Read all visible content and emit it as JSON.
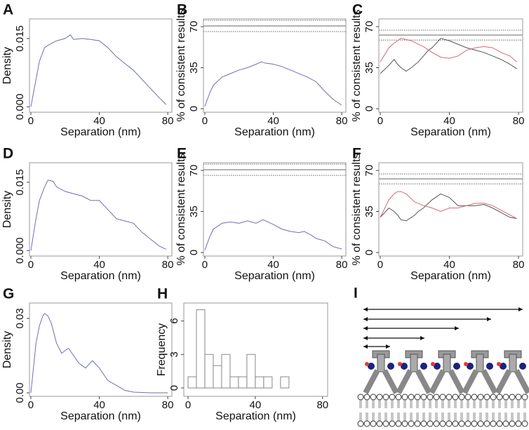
{
  "chart_data": [
    {
      "panel": "A",
      "type": "line",
      "y_label": "Density",
      "x_label": "Separation (nm)",
      "x": [
        0,
        3,
        5,
        8,
        10,
        15,
        20,
        23,
        25,
        30,
        35,
        40,
        45,
        50,
        55,
        60,
        65,
        70,
        75,
        79
      ],
      "series": [
        {
          "color": "#6e6eb8",
          "values": [
            0,
            0.006,
            0.01,
            0.013,
            0.0135,
            0.0145,
            0.015,
            0.0158,
            0.0148,
            0.015,
            0.0148,
            0.0145,
            0.013,
            0.011,
            0.0095,
            0.008,
            0.006,
            0.004,
            0.002,
            0.0005
          ]
        }
      ],
      "xlim": [
        -0.8,
        82.4
      ],
      "ylim": [
        -0.0012,
        0.0193
      ],
      "xticks": [
        0,
        40,
        80
      ],
      "yticks": [
        {
          "value": 0,
          "label": "0.000"
        },
        0.015
      ]
    },
    {
      "panel": "B",
      "type": "line",
      "y_label": "% of consistent results",
      "x_label": "Separation (nm)",
      "x": [
        0,
        3,
        5,
        10,
        15,
        20,
        25,
        30,
        33,
        35,
        40,
        45,
        50,
        55,
        60,
        65,
        70,
        75,
        80
      ],
      "series": [
        {
          "color": "#6e6eb8",
          "values": [
            2,
            14,
            20,
            27,
            30,
            33,
            35,
            38,
            40,
            39,
            38,
            36,
            33,
            30,
            27,
            23,
            15,
            8,
            3
          ]
        }
      ],
      "reference_lines": [
        {
          "value": 75.4,
          "style": "dotted"
        },
        {
          "value": 70.6,
          "style": "solid"
        },
        {
          "value": 65.8,
          "style": "dotted"
        }
      ],
      "xlim": [
        -0.8,
        82.4
      ],
      "ylim": [
        -3,
        76.6
      ],
      "xticks": [
        0,
        40,
        80
      ],
      "yticks": [
        0,
        35,
        70
      ]
    },
    {
      "panel": "C",
      "type": "line",
      "y_label": "% of consistent results",
      "x_label": "Separation (nm)",
      "x": [
        0,
        5,
        8,
        10,
        12,
        15,
        18,
        22,
        25,
        28,
        30,
        35,
        40,
        45,
        50,
        55,
        60,
        65,
        70,
        75,
        79
      ],
      "series": [
        {
          "color": "#555555",
          "values": [
            30,
            37,
            42,
            38,
            35,
            32,
            35,
            40,
            45,
            50,
            52,
            60,
            58,
            55,
            52,
            50,
            48,
            45,
            42,
            38,
            34
          ]
        },
        {
          "color": "#d4687a",
          "values": [
            40,
            52,
            56,
            58,
            60,
            59,
            58,
            55,
            53,
            50,
            48,
            44,
            43,
            45,
            50,
            52,
            53,
            52,
            48,
            45,
            40
          ]
        }
      ],
      "reference_lines": [
        {
          "value": 67,
          "style": "dotted"
        },
        {
          "value": 62.8,
          "style": "solid"
        },
        {
          "value": 58.6,
          "style": "dotted"
        }
      ],
      "xlim": [
        -0.8,
        82.4
      ],
      "ylim": [
        -3,
        76.6
      ],
      "xticks": [
        0,
        40,
        80
      ],
      "yticks": [
        0,
        35,
        70
      ]
    },
    {
      "panel": "D",
      "type": "line",
      "y_label": "Density",
      "x_label": "Separation (nm)",
      "x": [
        0,
        3,
        5,
        8,
        10,
        13,
        15,
        20,
        25,
        30,
        35,
        40,
        45,
        50,
        55,
        60,
        65,
        70,
        75,
        79
      ],
      "series": [
        {
          "color": "#6e6eb8",
          "values": [
            0,
            0.007,
            0.011,
            0.014,
            0.0155,
            0.0152,
            0.014,
            0.013,
            0.0125,
            0.012,
            0.011,
            0.011,
            0.009,
            0.007,
            0.0065,
            0.006,
            0.004,
            0.0025,
            0.001,
            0.0003
          ]
        }
      ],
      "xlim": [
        -0.8,
        82.4
      ],
      "ylim": [
        -0.0012,
        0.0193
      ],
      "xticks": [
        0,
        40,
        80
      ],
      "yticks": [
        {
          "value": 0,
          "label": "0.000"
        },
        0.015
      ]
    },
    {
      "panel": "E",
      "type": "line",
      "y_label": "% of consistent results",
      "x_label": "Separation (nm)",
      "x": [
        0,
        3,
        5,
        10,
        15,
        20,
        25,
        30,
        34,
        40,
        45,
        50,
        55,
        58,
        62,
        65,
        70,
        75,
        80
      ],
      "series": [
        {
          "color": "#6e6eb8",
          "values": [
            2,
            14,
            20,
            25,
            26,
            25,
            27,
            25,
            28,
            24,
            20,
            18,
            17,
            18,
            15,
            12,
            10,
            5,
            3
          ]
        }
      ],
      "reference_lines": [
        {
          "value": 75.4,
          "style": "dotted"
        },
        {
          "value": 70.6,
          "style": "solid"
        },
        {
          "value": 65.8,
          "style": "dotted"
        }
      ],
      "xlim": [
        -0.8,
        82.4
      ],
      "ylim": [
        -3,
        76.6
      ],
      "xticks": [
        0,
        40,
        80
      ],
      "yticks": [
        0,
        35,
        70
      ]
    },
    {
      "panel": "F",
      "type": "line",
      "y_label": "% of consistent results",
      "x_label": "Separation (nm)",
      "x": [
        0,
        5,
        8,
        10,
        12,
        15,
        20,
        22,
        25,
        30,
        35,
        40,
        45,
        50,
        55,
        60,
        65,
        70,
        75,
        79
      ],
      "series": [
        {
          "color": "#555555",
          "values": [
            30,
            38,
            35,
            32,
            28,
            27,
            32,
            35,
            38,
            45,
            50,
            47,
            40,
            40,
            40,
            41,
            38,
            34,
            30,
            29
          ]
        },
        {
          "color": "#d4687a",
          "values": [
            30,
            45,
            50,
            52,
            52,
            50,
            43,
            42,
            40,
            38,
            35,
            38,
            38,
            40,
            42,
            42,
            40,
            36,
            32,
            29
          ]
        }
      ],
      "reference_lines": [
        {
          "value": 67,
          "style": "dotted"
        },
        {
          "value": 62.8,
          "style": "solid"
        },
        {
          "value": 58.6,
          "style": "dotted"
        }
      ],
      "xlim": [
        -0.8,
        82.4
      ],
      "ylim": [
        -3,
        76.6
      ],
      "xticks": [
        0,
        40,
        80
      ],
      "yticks": [
        0,
        35,
        70
      ]
    },
    {
      "panel": "G",
      "type": "line",
      "y_label": "Density",
      "x_label": "Separation (nm)",
      "x": [
        0,
        3,
        5,
        7,
        8,
        10,
        12,
        15,
        18,
        22,
        25,
        28,
        32,
        36,
        40,
        45,
        50,
        55,
        60,
        70,
        80
      ],
      "series": [
        {
          "color": "#6e6eb8",
          "values": [
            0,
            0.02,
            0.027,
            0.031,
            0.032,
            0.031,
            0.028,
            0.02,
            0.016,
            0.018,
            0.015,
            0.012,
            0.01,
            0.013,
            0.01,
            0.005,
            0.003,
            0.001,
            0.0003,
            0,
            0
          ]
        }
      ],
      "xlim": [
        -0.8,
        82.4
      ],
      "ylim": [
        -0.0014,
        0.0362
      ],
      "xticks": [
        0,
        40,
        80
      ],
      "yticks": [
        {
          "value": 0,
          "label": "0.00"
        },
        0.03
      ]
    },
    {
      "panel": "H",
      "type": "histogram",
      "y_label": "Frequency",
      "x_label": "Separation (nm)",
      "bins": [
        0,
        5,
        10,
        15,
        20,
        25,
        30,
        35,
        40,
        45,
        50,
        55,
        60
      ],
      "counts": [
        1,
        7,
        3,
        2,
        3,
        1,
        1,
        3,
        1,
        1,
        0,
        1
      ],
      "xlim": [
        -2.5,
        83
      ],
      "ylim": [
        -0.75,
        7.6
      ],
      "xticks": [
        0,
        40,
        80
      ],
      "yticks": [
        0,
        3,
        6
      ]
    }
  ],
  "diagram": {
    "panel": "I"
  }
}
